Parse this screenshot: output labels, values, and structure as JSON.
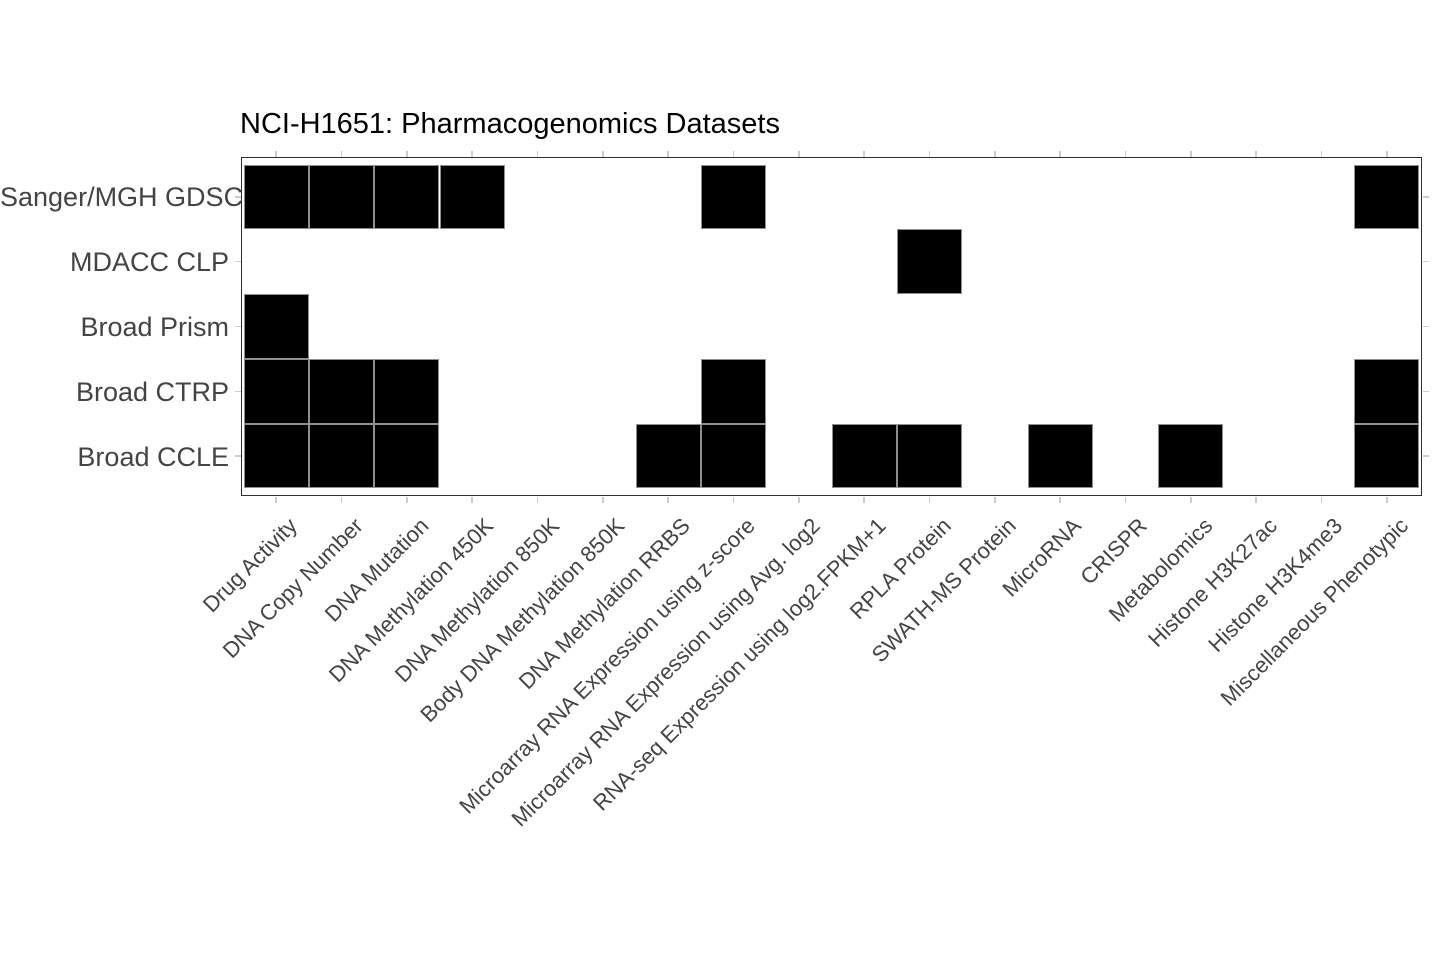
{
  "chart_data": {
    "type": "heatmap",
    "title": "NCI-H1651: Pharmacogenomics Datasets",
    "rows": [
      "Sanger/MGH GDSC",
      "MDACC CLP",
      "Broad Prism",
      "Broad CTRP",
      "Broad CCLE"
    ],
    "columns": [
      "Drug Activity",
      "DNA Copy Number",
      "DNA Mutation",
      "DNA Methylation 450K",
      "DNA Methylation 850K",
      "Body DNA Methylation 850K",
      "DNA Methylation RRBS",
      "Microarray RNA Expression using z-score",
      "Microarray RNA Expression using Avg. log2",
      "RNA-seq Expression using log2.FPKM+1",
      "RPLA Protein",
      "SWATH-MS Protein",
      "MicroRNA",
      "CRISPR",
      "Metabolomics",
      "Histone H3K27ac",
      "Histone H3K4me3",
      "Miscellaneous Phenotypic"
    ],
    "matrix": [
      [
        1,
        1,
        1,
        1,
        0,
        0,
        0,
        1,
        0,
        0,
        0,
        0,
        0,
        0,
        0,
        0,
        0,
        1
      ],
      [
        0,
        0,
        0,
        0,
        0,
        0,
        0,
        0,
        0,
        0,
        1,
        0,
        0,
        0,
        0,
        0,
        0,
        0
      ],
      [
        1,
        0,
        0,
        0,
        0,
        0,
        0,
        0,
        0,
        0,
        0,
        0,
        0,
        0,
        0,
        0,
        0,
        0
      ],
      [
        1,
        1,
        1,
        0,
        0,
        0,
        0,
        1,
        0,
        0,
        0,
        0,
        0,
        0,
        0,
        0,
        0,
        1
      ],
      [
        1,
        1,
        1,
        0,
        0,
        0,
        1,
        1,
        0,
        1,
        1,
        0,
        1,
        0,
        1,
        0,
        0,
        1
      ]
    ],
    "value_encoding": {
      "1": "dataset available (filled tile)",
      "0": "dataset not available (empty)"
    },
    "layout_hints": {
      "grid": "off",
      "ticks": "all four sides",
      "x_label_angle_deg": 45,
      "legend": "none"
    },
    "colors": {
      "filled": "#000000",
      "empty": "#ffffff",
      "cell_border": "#8f8f8f",
      "panel_border": "#2e2e2e",
      "tick": "#cccccc",
      "axis_text": "#444444",
      "title_text": "#000000",
      "background": "#ffffff"
    }
  }
}
